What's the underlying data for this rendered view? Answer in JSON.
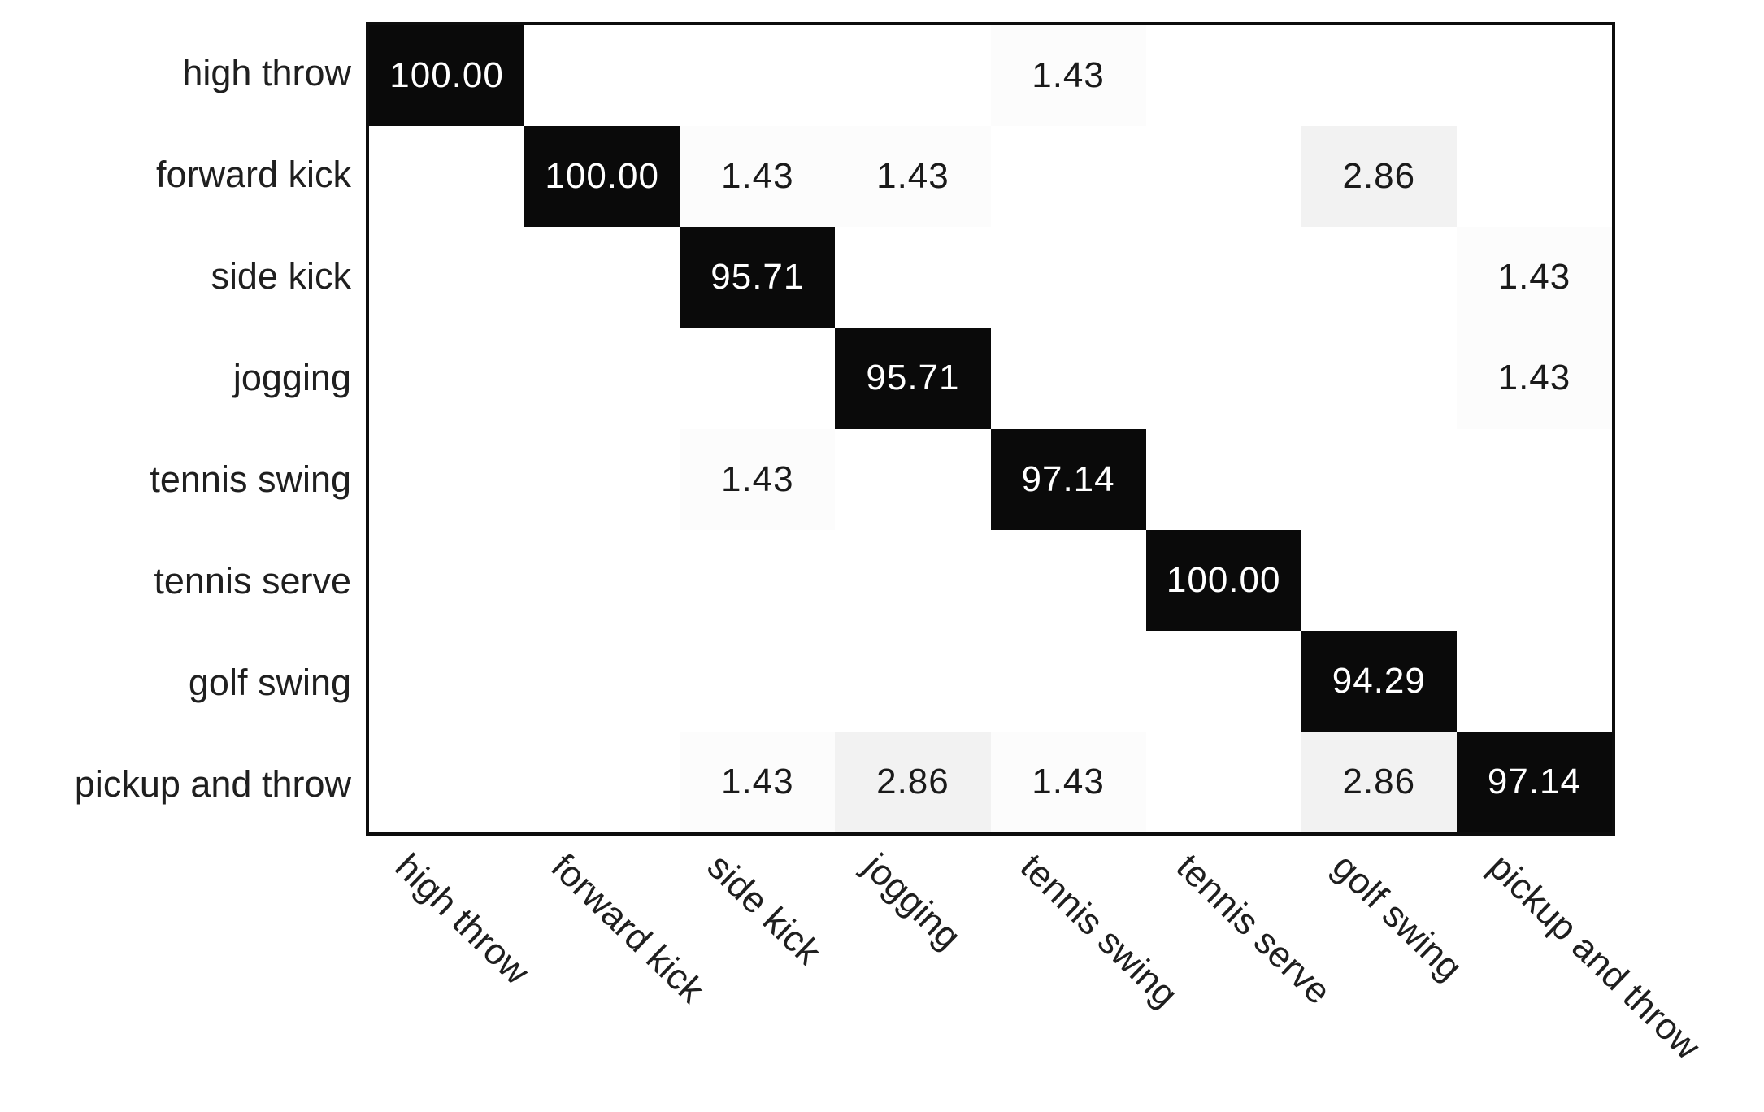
{
  "figure": {
    "background": "#ffffff"
  },
  "chart_data": {
    "type": "heatmap",
    "subtype": "confusion-matrix",
    "title": "",
    "xlabel": "",
    "ylabel": "",
    "legend": "none",
    "grid": "off",
    "value_unit": "percent",
    "value_range": [
      0,
      100
    ],
    "categories": [
      "high throw",
      "forward kick",
      "side kick",
      "jogging",
      "tennis swing",
      "tennis serve",
      "golf swing",
      "pickup and throw"
    ],
    "matrix": [
      [
        100.0,
        null,
        null,
        null,
        1.43,
        null,
        null,
        null
      ],
      [
        null,
        100.0,
        1.43,
        1.43,
        null,
        null,
        2.86,
        null
      ],
      [
        null,
        null,
        95.71,
        null,
        null,
        null,
        null,
        1.43
      ],
      [
        null,
        null,
        null,
        95.71,
        null,
        null,
        null,
        1.43
      ],
      [
        null,
        null,
        1.43,
        null,
        97.14,
        null,
        null,
        null
      ],
      [
        null,
        null,
        null,
        null,
        null,
        100.0,
        null,
        null
      ],
      [
        null,
        null,
        null,
        null,
        null,
        null,
        94.29,
        null
      ],
      [
        null,
        null,
        1.43,
        2.86,
        1.43,
        null,
        2.86,
        97.14
      ]
    ],
    "colors": {
      "high_cell_bg": "#0a0a0a",
      "high_cell_text": "#ffffff",
      "mid_cell_bg": "#f2f2f2",
      "low_cell_bg": "#fcfcfc",
      "empty_cell_bg": "#ffffff",
      "cell_text": "#1a1a1a",
      "label_text": "#1f1f1f",
      "border": "#0d0d0d"
    }
  }
}
